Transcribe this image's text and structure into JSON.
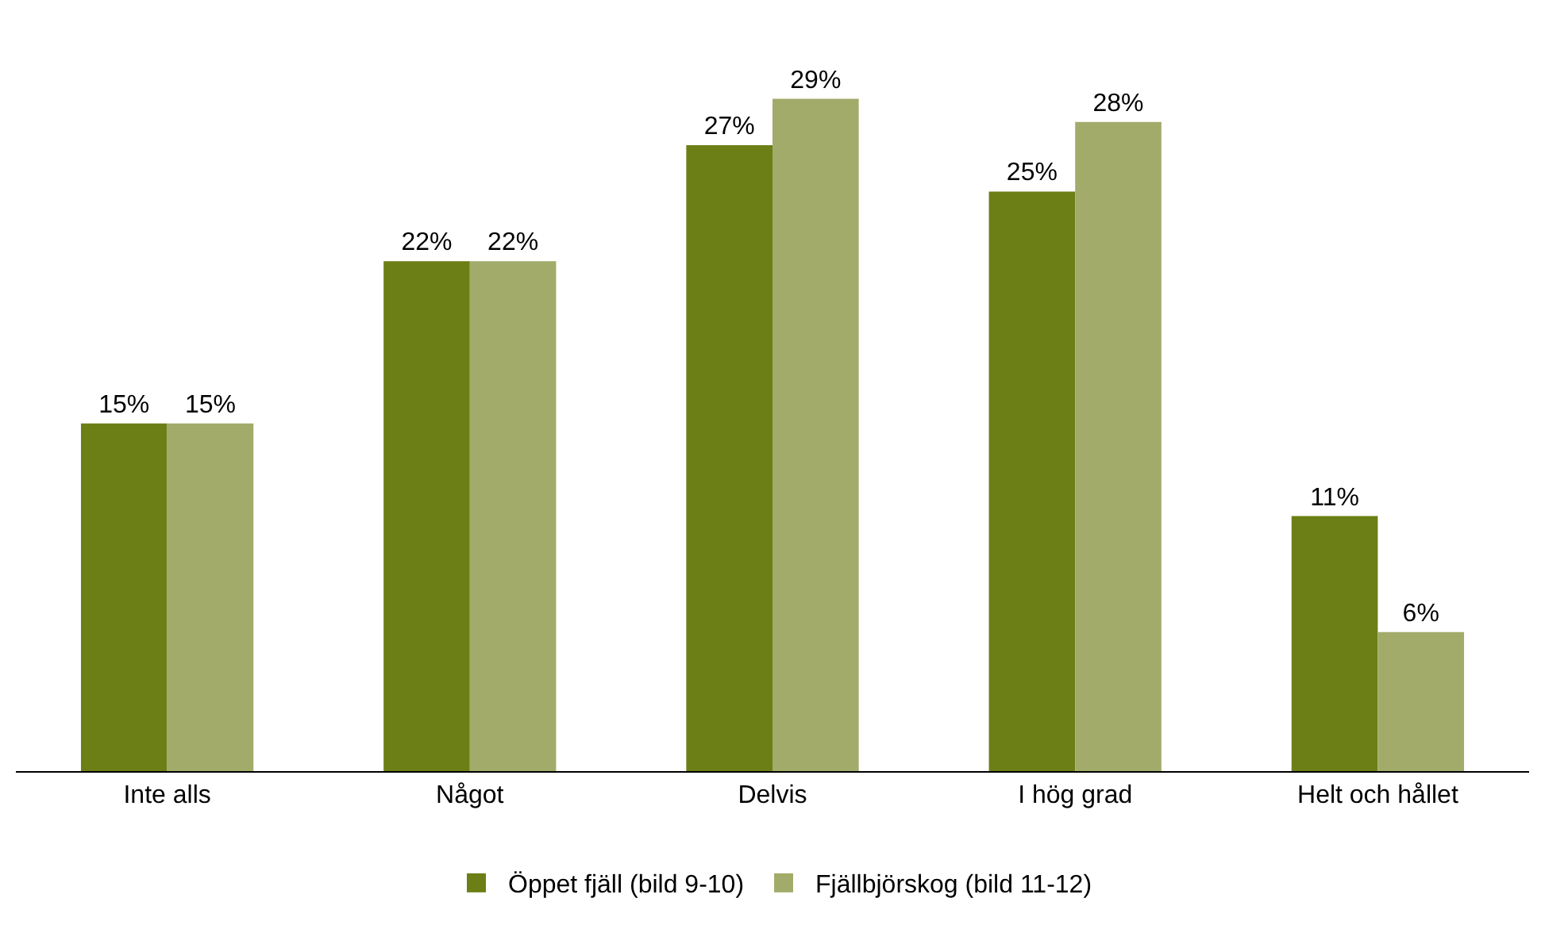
{
  "chart_data": {
    "type": "bar",
    "categories": [
      "Inte alls",
      "Något",
      "Delvis",
      "I hög grad",
      "Helt och hållet"
    ],
    "series": [
      {
        "name": "Öppet fjäll (bild 9-10)",
        "color": "#6b7f16",
        "values": [
          15,
          22,
          27,
          25,
          11
        ],
        "value_labels": [
          "15%",
          "22%",
          "27%",
          "25%",
          "11%"
        ]
      },
      {
        "name": "Fjällbjörskog (bild 11-12)",
        "color": "#a3ab6a",
        "values": [
          15,
          22,
          29,
          28,
          6
        ],
        "value_labels": [
          "15%",
          "22%",
          "29%",
          "28%",
          "6%"
        ]
      }
    ],
    "tick_labels": "x",
    "legend": "bottom"
  }
}
